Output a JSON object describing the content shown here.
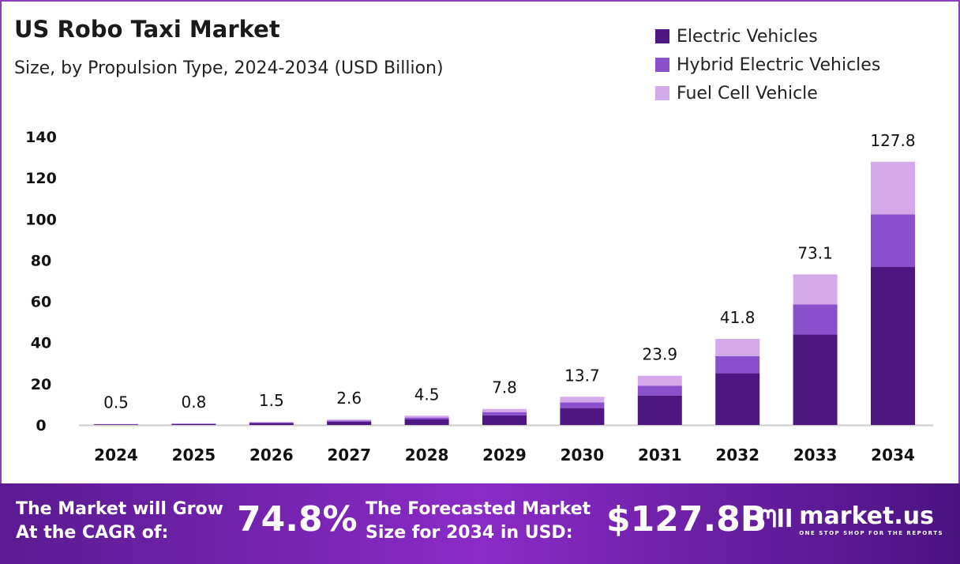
{
  "chart_data": {
    "type": "bar",
    "stacked": true,
    "title": "US Robo Taxi Market",
    "subtitle": "Size, by Propulsion Type, 2024-2034 (USD Billion)",
    "categories": [
      "2024",
      "2025",
      "2026",
      "2027",
      "2028",
      "2029",
      "2030",
      "2031",
      "2032",
      "2033",
      "2034"
    ],
    "series": [
      {
        "name": "Electric Vehicles",
        "color": "#4e1681",
        "values": [
          0.3,
          0.5,
          0.9,
          1.6,
          2.7,
          4.7,
          8.2,
          14.3,
          25.1,
          43.9,
          76.7
        ]
      },
      {
        "name": "Hybrid Electric Vehicles",
        "color": "#8a4fcb",
        "values": [
          0.1,
          0.15,
          0.3,
          0.5,
          0.9,
          1.55,
          2.75,
          4.8,
          8.35,
          14.6,
          25.55
        ]
      },
      {
        "name": "Fuel Cell Vehicle",
        "color": "#d3a9ea",
        "values": [
          0.1,
          0.15,
          0.3,
          0.5,
          0.9,
          1.55,
          2.75,
          4.8,
          8.35,
          14.6,
          25.55
        ]
      }
    ],
    "totals": [
      "0.5",
      "0.8",
      "1.5",
      "2.6",
      "4.5",
      "7.8",
      "13.7",
      "23.9",
      "41.8",
      "73.1",
      "127.8"
    ],
    "ylim": [
      0,
      140
    ],
    "yticks": [
      "0",
      "20",
      "40",
      "60",
      "80",
      "100",
      "120",
      "140"
    ],
    "grid": false,
    "legend": "top-right"
  },
  "footer": {
    "cagr_label_1": "The Market will Grow",
    "cagr_label_2": "At the CAGR of:",
    "cagr_value": "74.8%",
    "forecast_label_1": "The Forecasted Market",
    "forecast_label_2": "Size for 2034 in USD:",
    "forecast_value": "$127.8B",
    "brand": "market.us",
    "tagline": "ONE STOP SHOP FOR THE REPORTS"
  }
}
